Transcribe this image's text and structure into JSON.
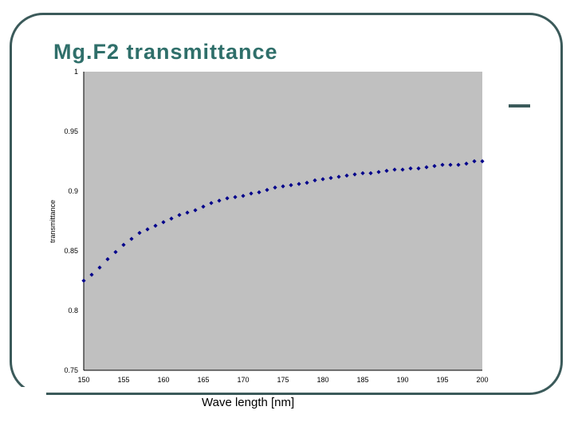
{
  "slide": {
    "title": "Mg.F2 transmittance"
  },
  "chart_data": {
    "type": "scatter",
    "title": "",
    "xlabel": "Wave length [nm]",
    "ylabel": "transmittance",
    "xlim": [
      150,
      200
    ],
    "ylim": [
      0.75,
      1
    ],
    "x_ticks": [
      150,
      155,
      160,
      165,
      170,
      175,
      180,
      185,
      190,
      195,
      200
    ],
    "y_ticks": [
      0.75,
      0.8,
      0.85,
      0.9,
      0.95,
      1
    ],
    "y_tick_labels": [
      "0.75",
      "0.8",
      "0.85",
      "0.9",
      "0.95",
      "1"
    ],
    "grid": false,
    "plot_background": "#c0c0c0",
    "marker_color": "#00008b",
    "series": [
      {
        "x": [
          150,
          151,
          152,
          153,
          154,
          155,
          156,
          157,
          158,
          159,
          160,
          161,
          162,
          163,
          164,
          165,
          166,
          167,
          168,
          169,
          170,
          171,
          172,
          173,
          174,
          175,
          176,
          177,
          178,
          179,
          180,
          181,
          182,
          183,
          184,
          185,
          186,
          187,
          188,
          189,
          190,
          191,
          192,
          193,
          194,
          195,
          196,
          197,
          198,
          199,
          200
        ],
        "values": [
          0.825,
          0.83,
          0.836,
          0.843,
          0.849,
          0.855,
          0.86,
          0.865,
          0.868,
          0.871,
          0.874,
          0.877,
          0.88,
          0.882,
          0.884,
          0.887,
          0.89,
          0.892,
          0.894,
          0.895,
          0.896,
          0.898,
          0.899,
          0.901,
          0.903,
          0.904,
          0.905,
          0.906,
          0.907,
          0.909,
          0.91,
          0.911,
          0.912,
          0.913,
          0.914,
          0.915,
          0.915,
          0.916,
          0.917,
          0.918,
          0.918,
          0.919,
          0.919,
          0.92,
          0.921,
          0.922,
          0.922,
          0.922,
          0.923,
          0.925,
          0.925
        ]
      }
    ]
  }
}
